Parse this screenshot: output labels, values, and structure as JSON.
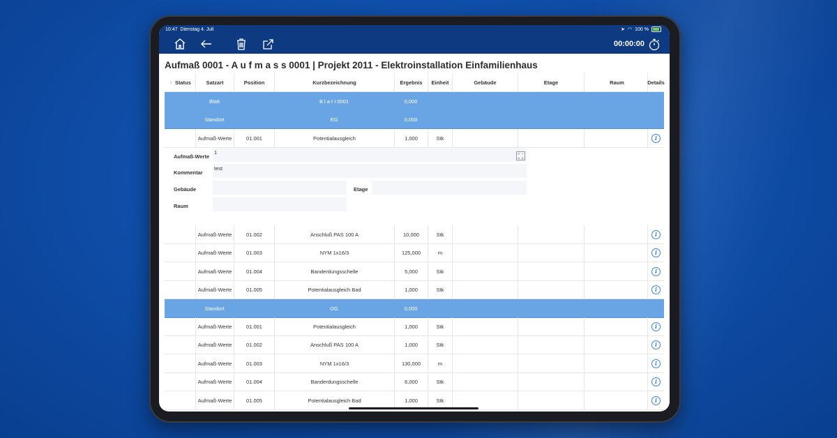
{
  "status_bar": {
    "time": "10:47",
    "date": "Dienstag 4. Juli",
    "battery": "100 %"
  },
  "toolbar": {
    "timer": "00:00:00"
  },
  "title": "Aufmaß 0001 - A u f m a s s  0001  |  Projekt 2011 - Elektroinstallation Einfamilienhaus",
  "columns": [
    "Status",
    "Satzart",
    "Position",
    "Kurzbezeichnung",
    "Ergebnis",
    "Einheit",
    "Gebäude",
    "Etage",
    "Raum",
    "Details"
  ],
  "rows": [
    {
      "type": "group",
      "satzart": "Blatt",
      "kurz": "B l a t t  0001",
      "ergebnis": "0,000"
    },
    {
      "type": "group",
      "satzart": "Standort",
      "kurz": "EG",
      "ergebnis": "0,000"
    },
    {
      "type": "item",
      "satzart": "Aufmaß-Werte",
      "position": "01.001",
      "kurz": "Potentialausgleich",
      "ergebnis": "1,000",
      "einheit": "Stk"
    },
    {
      "type": "item",
      "satzart": "Aufmaß-Werte",
      "position": "01.002",
      "kurz": "Anschluß PAS 100 A",
      "ergebnis": "10,000",
      "einheit": "Stk"
    },
    {
      "type": "item",
      "satzart": "Aufmaß-Werte",
      "position": "01.003",
      "kurz": "NYM 1x16/3",
      "ergebnis": "125,000",
      "einheit": "m"
    },
    {
      "type": "item",
      "satzart": "Aufmaß-Werte",
      "position": "01.004",
      "kurz": "Banderdungsschelle",
      "ergebnis": "5,000",
      "einheit": "Stk"
    },
    {
      "type": "item",
      "satzart": "Aufmaß-Werte",
      "position": "01.005",
      "kurz": "Potentialausgleich Bad",
      "ergebnis": "1,000",
      "einheit": "Stk"
    },
    {
      "type": "group",
      "satzart": "Standort",
      "kurz": "OG",
      "ergebnis": "0,000"
    },
    {
      "type": "item",
      "satzart": "Aufmaß-Werte",
      "position": "01.001",
      "kurz": "Potentialausgleich",
      "ergebnis": "1,000",
      "einheit": "Stk"
    },
    {
      "type": "item",
      "satzart": "Aufmaß-Werte",
      "position": "01.002",
      "kurz": "Anschluß PAS 100 A",
      "ergebnis": "1,000",
      "einheit": "Stk"
    },
    {
      "type": "item",
      "satzart": "Aufmaß-Werte",
      "position": "01.003",
      "kurz": "NYM 1x16/3",
      "ergebnis": "130,000",
      "einheit": "m"
    },
    {
      "type": "item",
      "satzart": "Aufmaß-Werte",
      "position": "01.004",
      "kurz": "Banderdungsschelle",
      "ergebnis": "6,000",
      "einheit": "Stk"
    },
    {
      "type": "item",
      "satzart": "Aufmaß-Werte",
      "position": "01.005",
      "kurz": "Potentialausgleich Bad",
      "ergebnis": "1,000",
      "einheit": "Stk"
    }
  ],
  "detail": {
    "labels": {
      "werte": "Aufmaß-Werte",
      "kommentar": "Kommentar",
      "gebaeude": "Gebäude",
      "etage": "Etage",
      "raum": "Raum"
    },
    "werte_value": "1",
    "kommentar_value": "test",
    "gebaeude_value": "",
    "etage_value": "",
    "raum_value": ""
  },
  "colors": {
    "group_row": "#69a4e4",
    "toolbar": "#0e3a82",
    "info_icon": "#3b7fd0"
  }
}
